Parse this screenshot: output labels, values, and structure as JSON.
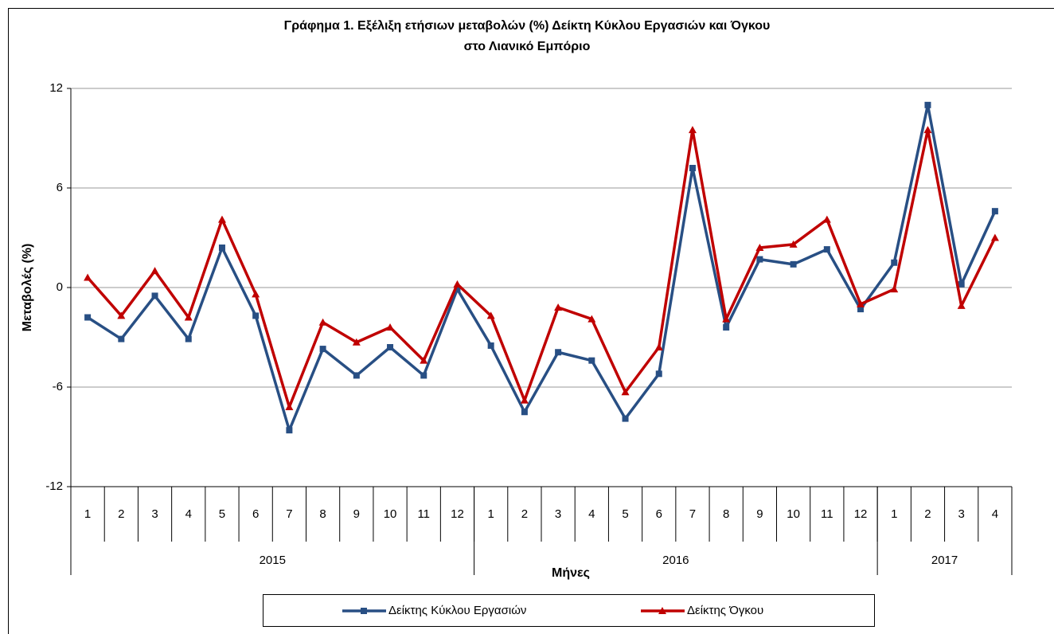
{
  "chart_data": {
    "type": "line",
    "title": "Γράφημα 1. Εξέλιξη ετήσιων μεταβολών (%) Δείκτη Κύκλου Εργασιών και Όγκου",
    "subtitle": "στο Λιανικό Εμπόριο",
    "y_label": "Μεταβολές  (%)",
    "x_label": "Μήνες",
    "categories": [
      "1",
      "2",
      "3",
      "4",
      "5",
      "6",
      "7",
      "8",
      "9",
      "10",
      "11",
      "12",
      "1",
      "2",
      "3",
      "4",
      "5",
      "6",
      "7",
      "8",
      "9",
      "10",
      "11",
      "12",
      "1",
      "2",
      "3",
      "4"
    ],
    "groups": [
      {
        "label": "2015",
        "size": 12
      },
      {
        "label": "2016",
        "size": 12
      },
      {
        "label": "2017",
        "size": 4
      }
    ],
    "series": [
      {
        "name": "Δείκτης Κύκλου Εργασιών",
        "color": "#284f84",
        "marker": "square",
        "values": [
          -1.8,
          -3.1,
          -0.5,
          -3.1,
          2.4,
          -1.7,
          -8.6,
          -3.7,
          -5.3,
          -3.6,
          -5.3,
          -0.1,
          -3.5,
          -7.5,
          -3.9,
          -4.4,
          -7.9,
          -5.2,
          7.2,
          -2.4,
          1.7,
          1.4,
          2.3,
          -1.3,
          1.5,
          11.0,
          0.2,
          4.6
        ]
      },
      {
        "name": "Δείκτης Όγκου",
        "color": "#c00000",
        "marker": "triangle",
        "values": [
          0.6,
          -1.7,
          1.0,
          -1.8,
          4.1,
          -0.4,
          -7.2,
          -2.1,
          -3.3,
          -2.4,
          -4.4,
          0.2,
          -1.7,
          -6.8,
          -1.2,
          -1.9,
          -6.3,
          -3.6,
          9.5,
          -1.9,
          2.4,
          2.6,
          4.1,
          -1.0,
          -0.1,
          9.5,
          -1.1,
          3.0
        ]
      }
    ],
    "ylim": [
      -12,
      12
    ],
    "yticks": [
      -12,
      -6,
      0,
      6,
      12
    ],
    "grid": true,
    "legend": "bottom"
  }
}
